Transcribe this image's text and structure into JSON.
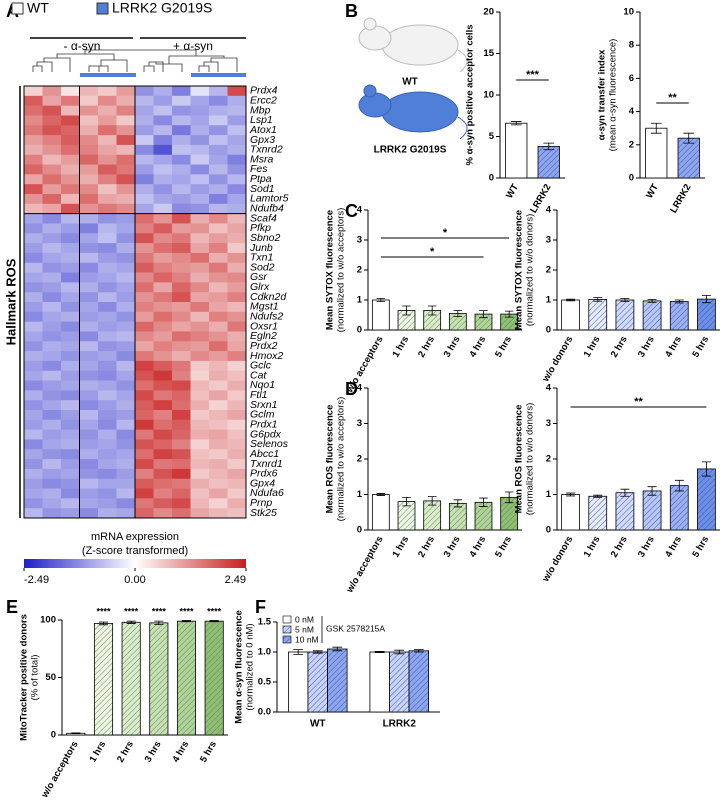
{
  "figure": {
    "panels": [
      "A",
      "B",
      "C",
      "D",
      "E",
      "F"
    ],
    "mice": [
      "WT",
      "LRRK2 G2019S"
    ]
  },
  "chart_data": [
    {
      "type": "heatmap",
      "legend": [
        {
          "name": "WT",
          "color": "#ffffff"
        },
        {
          "name": "LRRK2 G2019S",
          "color": "#4f7fd6"
        }
      ],
      "column_groups": [
        "- α-syn",
        "+ α-syn"
      ],
      "row_group": "Hallmark ROS",
      "rows": [
        "Prdx4",
        "Ercc2",
        "Mbp",
        "Lsp1",
        "Atox1",
        "Gpx3",
        "Txnrd2",
        "Msra",
        "Fes",
        "Ptpa",
        "Sod1",
        "Lamtor5",
        "Ndufb4",
        "Scaf4",
        "Pfkp",
        "Sbno2",
        "Junb",
        "Txn1",
        "Sod2",
        "Gsr",
        "Glrx",
        "Cdkn2d",
        "Mgst1",
        "Ndufs2",
        "Oxsr1",
        "Egln2",
        "Prdx2",
        "Hmox2",
        "Gclc",
        "Cat",
        "Nqo1",
        "Ftl1",
        "Srxn1",
        "Gclm",
        "Prdx1",
        "G6pdx",
        "Selenos",
        "Abcc1",
        "Txnrd1",
        "Prdx6",
        "Gpx4",
        "Ndufa6",
        "Prnp",
        "Stk25"
      ],
      "values": [
        [
          0.5,
          1.2,
          0.3,
          0.8,
          0.6,
          1.1,
          -1.2,
          -0.9,
          -1.4,
          -0.3,
          -0.8,
          2.0
        ],
        [
          1.8,
          1.0,
          1.5,
          0.6,
          1.3,
          0.9,
          -0.8,
          -1.1,
          -0.6,
          -1.0,
          -1.3,
          -0.9
        ],
        [
          1.6,
          1.9,
          0.8,
          1.2,
          0.9,
          1.4,
          -1.0,
          -0.7,
          -1.2,
          -1.1,
          -0.9,
          -0.8
        ],
        [
          1.3,
          1.7,
          2.0,
          0.7,
          1.1,
          0.6,
          -0.9,
          -1.3,
          -0.8,
          -1.0,
          -0.6,
          -1.1
        ],
        [
          1.5,
          1.9,
          1.7,
          0.9,
          1.6,
          1.2,
          -1.1,
          -0.8,
          -1.5,
          -0.9,
          -1.2,
          -0.7
        ],
        [
          1.1,
          1.4,
          1.8,
          1.3,
          0.8,
          1.9,
          -0.6,
          -1.4,
          -0.9,
          -1.2,
          -0.7,
          -1.0
        ],
        [
          0.9,
          1.2,
          1.6,
          1.4,
          1.0,
          0.8,
          -1.3,
          -1.9,
          -0.7,
          -0.8,
          -1.1,
          -0.9
        ],
        [
          1.4,
          0.8,
          1.1,
          1.7,
          1.2,
          1.6,
          -0.8,
          -1.0,
          -1.3,
          -0.6,
          -1.0,
          -1.4
        ],
        [
          1.7,
          1.3,
          0.9,
          1.1,
          1.8,
          1.5,
          -1.1,
          -0.7,
          -0.9,
          -1.3,
          -0.8,
          -1.2
        ],
        [
          1.0,
          1.6,
          1.2,
          0.9,
          1.4,
          1.9,
          -1.4,
          -0.9,
          -1.0,
          -0.7,
          -1.2,
          -0.8
        ],
        [
          1.9,
          1.1,
          1.5,
          1.3,
          0.7,
          1.2,
          -0.9,
          -1.2,
          -0.8,
          -1.1,
          -0.9,
          -1.3
        ],
        [
          1.2,
          1.7,
          0.8,
          1.6,
          1.0,
          0.9,
          -0.7,
          -1.0,
          -1.1,
          -0.9,
          -1.4,
          -1.0
        ],
        [
          0.8,
          1.0,
          1.9,
          1.2,
          1.5,
          1.3,
          -1.0,
          -0.6,
          -1.3,
          -1.2,
          -0.8,
          -0.9
        ],
        [
          -1.0,
          -1.3,
          -0.8,
          -0.9,
          -1.2,
          -1.1,
          1.6,
          1.2,
          1.9,
          0.9,
          1.3,
          0.8
        ],
        [
          -1.2,
          -0.9,
          -1.1,
          -1.4,
          -0.8,
          -1.0,
          1.4,
          1.8,
          1.1,
          1.2,
          0.7,
          1.0
        ],
        [
          -0.9,
          -1.1,
          -1.3,
          -1.0,
          -0.7,
          -1.2,
          1.9,
          1.3,
          1.5,
          0.8,
          1.1,
          0.9
        ],
        [
          -1.1,
          -0.8,
          -1.0,
          -1.2,
          -1.3,
          -0.9,
          1.2,
          1.6,
          1.8,
          1.0,
          1.4,
          0.6
        ],
        [
          -1.3,
          -1.0,
          -0.9,
          -0.8,
          -1.1,
          -1.2,
          1.5,
          1.1,
          1.3,
          1.6,
          0.9,
          1.2
        ],
        [
          -0.8,
          -1.2,
          -1.1,
          -1.3,
          -0.9,
          -1.0,
          1.8,
          1.4,
          1.2,
          1.1,
          1.5,
          0.9
        ],
        [
          -1.0,
          -0.9,
          -1.4,
          -1.1,
          -1.0,
          -0.8,
          1.3,
          1.7,
          1.4,
          0.9,
          1.2,
          1.3
        ],
        [
          -1.2,
          -1.1,
          -0.8,
          -0.9,
          -1.2,
          -1.0,
          1.6,
          1.0,
          1.7,
          1.3,
          0.8,
          1.1
        ],
        [
          -0.9,
          -1.3,
          -1.0,
          -1.2,
          -0.8,
          -1.1,
          1.2,
          1.5,
          1.9,
          1.0,
          1.1,
          1.4
        ],
        [
          -1.1,
          -0.8,
          -1.2,
          -1.0,
          -1.3,
          -0.9,
          1.4,
          1.2,
          1.1,
          1.5,
          1.0,
          0.8
        ],
        [
          -1.3,
          -1.0,
          -0.9,
          -1.1,
          -1.0,
          -1.2,
          1.1,
          1.6,
          1.3,
          0.8,
          1.4,
          1.2
        ],
        [
          -0.8,
          -1.1,
          -1.3,
          -0.9,
          -1.1,
          -1.0,
          1.7,
          1.3,
          1.0,
          1.2,
          0.9,
          1.5
        ],
        [
          -1.0,
          -1.2,
          -1.1,
          -1.3,
          -0.9,
          -0.8,
          1.3,
          1.1,
          1.6,
          1.4,
          1.2,
          0.9
        ],
        [
          -1.2,
          -0.9,
          -1.0,
          -0.8,
          -1.2,
          -1.1,
          1.0,
          1.4,
          1.2,
          1.1,
          1.6,
          1.0
        ],
        [
          -0.9,
          -1.0,
          -1.2,
          -1.1,
          -1.0,
          -1.3,
          1.5,
          1.2,
          0.9,
          1.3,
          1.1,
          1.4
        ],
        [
          -1.1,
          -1.3,
          -0.9,
          -1.0,
          -1.2,
          -0.8,
          2.1,
          1.8,
          1.5,
          0.6,
          0.8,
          0.5
        ],
        [
          -1.0,
          -0.8,
          -1.1,
          -1.2,
          -1.3,
          -1.0,
          1.9,
          2.2,
          1.4,
          0.5,
          0.9,
          0.7
        ],
        [
          -1.3,
          -1.1,
          -1.0,
          -0.9,
          -1.0,
          -1.2,
          1.6,
          1.9,
          2.0,
          0.8,
          0.6,
          0.9
        ],
        [
          -0.9,
          -1.2,
          -1.3,
          -1.1,
          -0.8,
          -1.0,
          2.0,
          1.5,
          1.7,
          0.7,
          1.0,
          0.6
        ],
        [
          -1.2,
          -1.0,
          -0.8,
          -1.3,
          -1.1,
          -0.9,
          1.8,
          2.1,
          1.6,
          0.9,
          0.5,
          0.8
        ],
        [
          -1.0,
          -1.3,
          -1.1,
          -0.8,
          -1.2,
          -1.1,
          1.7,
          1.4,
          2.1,
          0.6,
          0.8,
          1.0
        ],
        [
          -1.1,
          -0.9,
          -1.2,
          -1.0,
          -1.3,
          -0.8,
          2.2,
          1.6,
          1.8,
          0.8,
          0.7,
          0.5
        ],
        [
          -0.8,
          -1.1,
          -1.0,
          -1.2,
          -0.9,
          -1.3,
          1.5,
          2.0,
          1.7,
          0.9,
          1.0,
          0.7
        ],
        [
          -1.3,
          -1.0,
          -0.9,
          -1.1,
          -1.0,
          -1.2,
          1.9,
          1.7,
          1.4,
          0.5,
          0.9,
          0.8
        ],
        [
          -1.0,
          -1.2,
          -1.3,
          -0.9,
          -1.1,
          -1.0,
          1.6,
          2.1,
          1.9,
          0.7,
          0.6,
          0.9
        ],
        [
          -1.2,
          -0.8,
          -1.1,
          -1.3,
          -1.0,
          -0.9,
          2.0,
          1.5,
          1.6,
          0.8,
          0.9,
          0.6
        ],
        [
          -0.9,
          -1.1,
          -1.0,
          -1.2,
          -1.3,
          -1.1,
          1.4,
          1.9,
          2.2,
          0.6,
          0.8,
          1.0
        ],
        [
          -1.1,
          -1.3,
          -1.2,
          -0.8,
          -1.0,
          -1.0,
          1.8,
          1.6,
          1.5,
          0.9,
          0.7,
          0.8
        ],
        [
          -1.0,
          -0.9,
          -1.3,
          -1.1,
          -1.2,
          -0.8,
          2.1,
          1.4,
          1.7,
          0.7,
          1.0,
          0.6
        ],
        [
          -1.2,
          -1.0,
          -0.8,
          -1.0,
          -1.1,
          -1.3,
          1.5,
          1.8,
          2.0,
          0.8,
          0.5,
          0.9
        ],
        [
          -0.8,
          -1.2,
          -1.1,
          -1.3,
          -0.9,
          -1.0,
          1.7,
          1.3,
          1.6,
          1.0,
          0.8,
          0.7
        ]
      ],
      "colorbar_label": [
        "mRNA expression",
        "(Z-score transformed)"
      ],
      "clim": [
        -2.49,
        2.49
      ],
      "cticks": [
        -2.49,
        {
          "value": 0,
          "label": "0.00"
        },
        2.49
      ],
      "colormap": [
        "#1e1ec8",
        "#ffffff",
        "#c81e1e"
      ]
    },
    {
      "type": "bar",
      "ylabel": [
        "% α-syn positive acceptor cells"
      ],
      "categories": [
        "WT",
        "LRRK2"
      ],
      "values": [
        6.6,
        3.8
      ],
      "errors": [
        0.2,
        0.4
      ],
      "colors": [
        "#ffffff",
        "#8fa6ea"
      ],
      "hatch_color": "#3355cc",
      "ylim": [
        0,
        20
      ],
      "yticks": [
        0,
        5,
        10,
        15,
        20
      ],
      "annotations": [
        "***"
      ]
    },
    {
      "type": "bar",
      "ylabel": [
        "α-syn transfer index",
        "(mean α-syn fluorescence)"
      ],
      "categories": [
        "WT",
        "LRRK2"
      ],
      "values": [
        3.0,
        2.4
      ],
      "errors": [
        0.3,
        0.3
      ],
      "colors": [
        "#ffffff",
        "#8fa6ea"
      ],
      "hatch_color": "#3355cc",
      "ylim": [
        0,
        10
      ],
      "yticks": [
        0,
        2,
        4,
        6,
        8,
        10
      ],
      "annotations": [
        "**"
      ]
    },
    {
      "type": "bar",
      "ylabel": [
        "Mean SYTOX fluorescence",
        "(normalized to w/o acceptors)"
      ],
      "categories": [
        "w/o acceptors",
        "1 hrs",
        "2 hrs",
        "3 hrs",
        "4 hrs",
        "5 hrs"
      ],
      "values": [
        1.0,
        0.65,
        0.65,
        0.55,
        0.53,
        0.53
      ],
      "errors": [
        0.05,
        0.15,
        0.15,
        0.1,
        0.12,
        0.1
      ],
      "colors": [
        "#ffffff",
        "#eef5e8",
        "#dcebd0",
        "#c8e0b8",
        "#b0d29c",
        "#8fbf76"
      ],
      "hatch_color": "#5a8f3e",
      "ylim": [
        0,
        4
      ],
      "yticks": [
        0,
        1,
        2,
        3,
        4
      ],
      "annotations": [
        "*",
        "*"
      ]
    },
    {
      "type": "bar",
      "ylabel": [
        "Mean SYTOX fluorescence",
        "(normalized to w/o donors)"
      ],
      "categories": [
        "w/o donors",
        "1 hrs",
        "2 hrs",
        "3 hrs",
        "4 hrs",
        "5 hrs"
      ],
      "values": [
        1.0,
        1.02,
        1.0,
        0.97,
        0.95,
        1.03
      ],
      "errors": [
        0.03,
        0.06,
        0.05,
        0.05,
        0.05,
        0.12
      ],
      "colors": [
        "#ffffff",
        "#e8edfb",
        "#d3dcf7",
        "#b9c8f2",
        "#9db1ec",
        "#6f8fe3"
      ],
      "hatch_color": "#3355cc",
      "ylim": [
        0,
        4
      ],
      "yticks": [
        0,
        1,
        2,
        3,
        4
      ],
      "annotations": []
    },
    {
      "type": "bar",
      "ylabel": [
        "Mean ROS fluorescence",
        "(normalized to w/o acceptors)"
      ],
      "categories": [
        "w/o acceptors",
        "1 hrs",
        "2 hrs",
        "3 hrs",
        "4 hrs",
        "5 hrs"
      ],
      "values": [
        1.0,
        0.8,
        0.82,
        0.75,
        0.78,
        0.92
      ],
      "errors": [
        0.03,
        0.12,
        0.12,
        0.1,
        0.12,
        0.15
      ],
      "colors": [
        "#ffffff",
        "#eef5e8",
        "#dcebd0",
        "#c8e0b8",
        "#b0d29c",
        "#8fbf76"
      ],
      "hatch_color": "#5a8f3e",
      "ylim": [
        0,
        4
      ],
      "yticks": [
        0,
        1,
        2,
        3,
        4
      ],
      "annotations": []
    },
    {
      "type": "bar",
      "ylabel": [
        "Mean ROS fluorescence",
        "(normalized to w/o donors)"
      ],
      "categories": [
        "w/o donors",
        "1 hrs",
        "2 hrs",
        "3 hrs",
        "4 hrs",
        "5 hrs"
      ],
      "values": [
        1.0,
        0.95,
        1.05,
        1.1,
        1.25,
        1.72
      ],
      "errors": [
        0.04,
        0.03,
        0.1,
        0.12,
        0.15,
        0.2
      ],
      "colors": [
        "#ffffff",
        "#e8edfb",
        "#d3dcf7",
        "#b9c8f2",
        "#9db1ec",
        "#6f8fe3"
      ],
      "hatch_color": "#3355cc",
      "ylim": [
        0,
        4
      ],
      "yticks": [
        0,
        1,
        2,
        3,
        4
      ],
      "annotations": [
        "**"
      ]
    },
    {
      "type": "bar",
      "ylabel": [
        "MitoTracker positive donors",
        "(% of total)"
      ],
      "categories": [
        "w/o acceptors",
        "1 hrs",
        "2 hrs",
        "3 hrs",
        "4 hrs",
        "5 hrs"
      ],
      "values": [
        1.5,
        97,
        98,
        97.5,
        99,
        99
      ],
      "errors": [
        0.3,
        1.2,
        1,
        1.5,
        0.5,
        0.5
      ],
      "colors": [
        "#ffffff",
        "#eef5e8",
        "#dcebd0",
        "#c8e0b8",
        "#b0d29c",
        "#8fbf76"
      ],
      "hatch_color": "#5a8f3e",
      "ylim": [
        0,
        100
      ],
      "yticks": [
        0,
        50,
        100
      ],
      "annotations": [
        "****",
        "****",
        "****",
        "****",
        "****"
      ]
    },
    {
      "type": "grouped_bar",
      "ylabel": [
        "Mean α-syn fluorescence",
        "(normalized to 0 nM)"
      ],
      "categories": [
        "WT",
        "LRRK2"
      ],
      "legend_title": "GSK 2578215A",
      "series": [
        {
          "name": "0 nM",
          "color": "#ffffff",
          "values": [
            1.0,
            1.0
          ],
          "errors": [
            0.04,
            0.01
          ]
        },
        {
          "name": "5 nM",
          "color": "#c9d4f6",
          "values": [
            1.0,
            1.0
          ],
          "errors": [
            0.02,
            0.03
          ]
        },
        {
          "name": "10 nM",
          "color": "#8fa6ea",
          "values": [
            1.05,
            1.02
          ],
          "errors": [
            0.03,
            0.02
          ]
        }
      ],
      "hatch_color": "#3355cc",
      "ylim": [
        0,
        1.5
      ],
      "yticks": [
        {
          "value": 0,
          "label": "0.0"
        },
        {
          "value": 0.5,
          "label": "0.5"
        },
        {
          "value": 1.0,
          "label": "1.0"
        },
        {
          "value": 1.5,
          "label": "1.5"
        }
      ]
    }
  ]
}
